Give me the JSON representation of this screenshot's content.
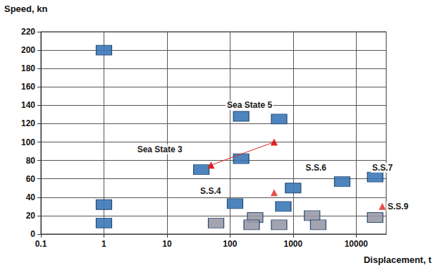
{
  "chart_data": {
    "type": "scatter",
    "x_label": "Displacement, t",
    "y_label": "Speed, kn",
    "log": "x",
    "grid": true,
    "xlim": [
      0.1,
      30000
    ],
    "xticks": [
      0.1,
      1,
      10,
      100,
      1000,
      10000
    ],
    "ylim": [
      0,
      220
    ],
    "yticks": [
      0,
      20,
      40,
      60,
      80,
      100,
      120,
      140,
      160,
      180,
      200,
      220
    ],
    "series": [
      {
        "type": "scatter",
        "marker": "rect",
        "color": "#3b78b8",
        "x": [
          1,
          1,
          1,
          35,
          150,
          150,
          600,
          120,
          1000,
          700,
          6000,
          20000
        ],
        "values": [
          200,
          32,
          12,
          70,
          82,
          128,
          125,
          33,
          50,
          30,
          57,
          62
        ]
      },
      {
        "type": "scatter",
        "marker": "rect",
        "color": "#9a9aa8",
        "x": [
          60,
          250,
          220,
          600,
          2000,
          2500,
          20000
        ],
        "values": [
          12,
          18,
          10,
          10,
          20,
          10,
          18
        ]
      },
      {
        "type": "line",
        "marker": "triangle",
        "color": "#e02020",
        "x": [
          50,
          500
        ],
        "values": [
          75,
          100
        ]
      },
      {
        "type": "scatter",
        "marker": "triangle",
        "color": "#e02020",
        "x": [
          500,
          26000
        ],
        "values": [
          45,
          30
        ]
      }
    ],
    "annotations": [
      {
        "text": "Sea State 5",
        "x": 85,
        "y": 140
      },
      {
        "text": "Sea State 3",
        "x": 3.2,
        "y": 92
      },
      {
        "text": "S.S.4",
        "x": 32,
        "y": 47
      },
      {
        "text": "S.S.6",
        "x": 1500,
        "y": 72
      },
      {
        "text": "S.S.7",
        "x": 17000,
        "y": 72
      },
      {
        "text": "S.S.9",
        "x": 30000,
        "y": 30
      }
    ]
  }
}
